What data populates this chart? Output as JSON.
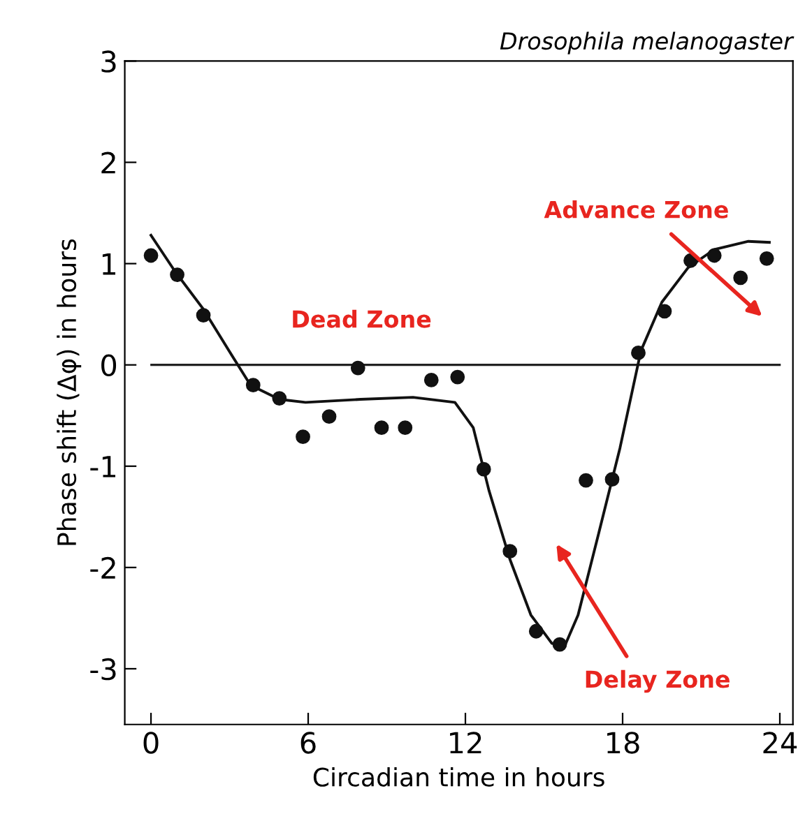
{
  "chart_data": {
    "type": "scatter",
    "title": "Drosophila melanogaster",
    "xlabel": "Circadian time in hours",
    "ylabel": "Phase shift (Δφ) in hours",
    "xlim": [
      -1,
      24.5
    ],
    "ylim": [
      -3.55,
      3
    ],
    "xticks": [
      0,
      6,
      12,
      18,
      24
    ],
    "yticks": [
      -3,
      -2,
      -1,
      0,
      1,
      2,
      3
    ],
    "grid": false,
    "series": [
      {
        "marker": "circle",
        "color": "#111111",
        "x": [
          0,
          1,
          2,
          3.9,
          4.9,
          5.8,
          6.8,
          7.9,
          8.8,
          9.7,
          10.7,
          11.7,
          12.7,
          13.7,
          14.7,
          15.6,
          16.6,
          17.6,
          18.6,
          19.6,
          20.6,
          21.5,
          22.5,
          23.5
        ],
        "values": [
          1.08,
          0.89,
          0.49,
          -0.2,
          -0.33,
          -0.71,
          -0.51,
          -0.03,
          -0.62,
          -0.62,
          -0.15,
          -0.12,
          -1.03,
          -1.84,
          -2.63,
          -2.76,
          -1.14,
          -1.13,
          0.12,
          0.53,
          1.03,
          1.08,
          0.86,
          1.05
        ]
      },
      {
        "type": "line",
        "color": "#111111",
        "line_style": "solid",
        "x": [
          0,
          0.9,
          2,
          3,
          3.8,
          4.9,
          5.9,
          8,
          10,
          11.6,
          12.3,
          12.9,
          13.7,
          14.5,
          15.3,
          15.8,
          16.3,
          17.1,
          17.9,
          18.7,
          19.5,
          20.5,
          21.5,
          22.8,
          23.6
        ],
        "values": [
          1.28,
          0.93,
          0.55,
          0.13,
          -0.2,
          -0.34,
          -0.37,
          -0.34,
          -0.32,
          -0.37,
          -0.62,
          -1.24,
          -1.92,
          -2.47,
          -2.75,
          -2.77,
          -2.47,
          -1.65,
          -0.82,
          0.14,
          0.62,
          0.96,
          1.14,
          1.22,
          1.21
        ]
      }
    ],
    "ref_lines": [
      {
        "axis": "y",
        "value": 0,
        "color": "#222222",
        "line_style": "solid"
      }
    ],
    "annotations": [
      "Dead Zone",
      "Advance Zone",
      "Delay Zone"
    ]
  }
}
